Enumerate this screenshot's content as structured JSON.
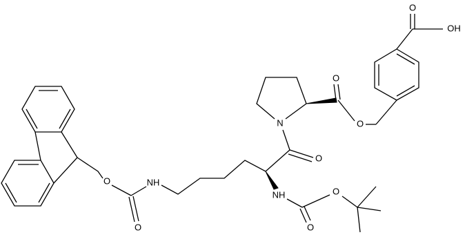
{
  "atoms": [
    "O",
    "OH",
    "O",
    "O",
    "N",
    "O",
    "NH",
    "O",
    "O",
    "NH",
    "O",
    "O"
  ]
}
